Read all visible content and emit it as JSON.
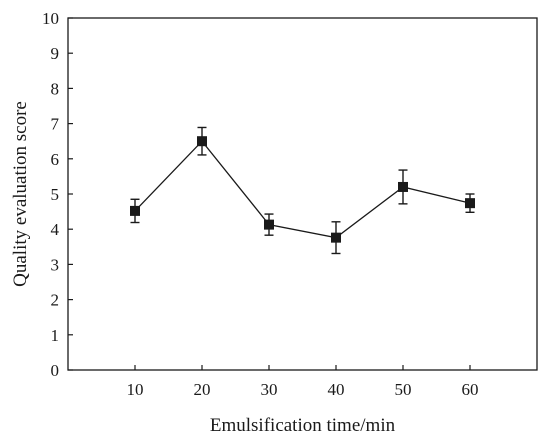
{
  "chart_data": {
    "type": "line",
    "title": "",
    "xlabel": "Emulsification time/min",
    "ylabel": "Quality evaluation score",
    "xlim": [
      0,
      70
    ],
    "ylim": [
      0,
      10
    ],
    "x_ticks": [
      10,
      20,
      30,
      40,
      50,
      60
    ],
    "y_ticks": [
      0,
      1,
      2,
      3,
      4,
      5,
      6,
      7,
      8,
      9,
      10
    ],
    "grid": false,
    "legend": "none",
    "series": [
      {
        "x": [
          10,
          20,
          30,
          40,
          50,
          60
        ],
        "y": [
          4.52,
          6.5,
          4.13,
          3.76,
          5.2,
          4.74
        ],
        "error": [
          0.33,
          0.39,
          0.3,
          0.45,
          0.48,
          0.26
        ],
        "color": "#1a1a1a",
        "marker": "square"
      }
    ]
  }
}
